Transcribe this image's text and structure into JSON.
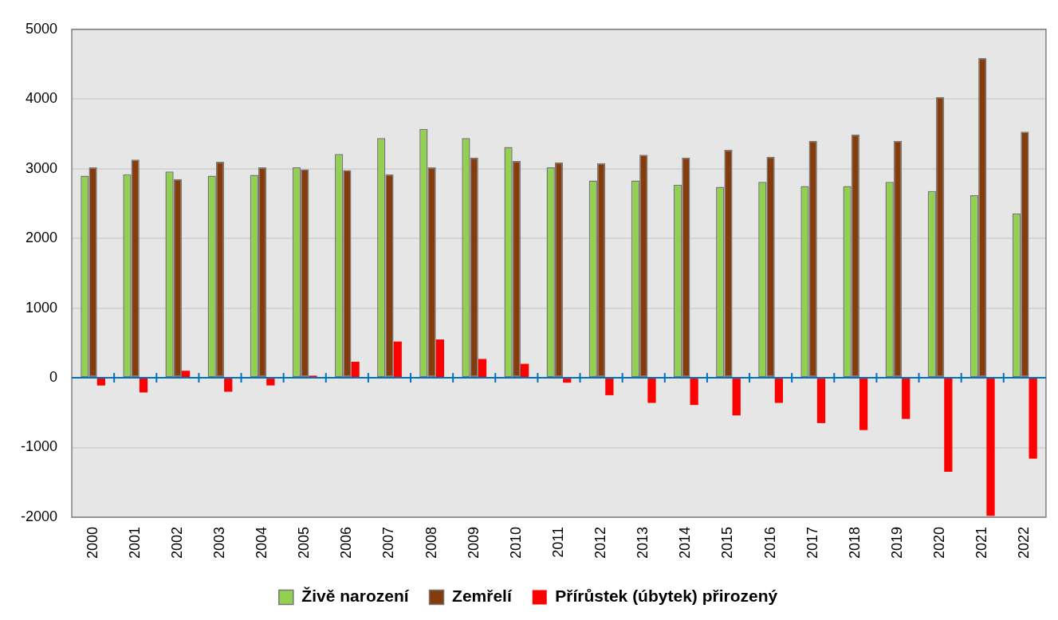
{
  "chart_data": {
    "type": "bar",
    "categories": [
      "2000",
      "2001",
      "2002",
      "2003",
      "2004",
      "2005",
      "2006",
      "2007",
      "2008",
      "2009",
      "2010",
      "2011",
      "2012",
      "2013",
      "2014",
      "2015",
      "2016",
      "2017",
      "2018",
      "2019",
      "2020",
      "2021",
      "2022"
    ],
    "series": [
      {
        "name": "Živě narození",
        "color": "#92d050",
        "values": [
          2900,
          2920,
          2960,
          2900,
          2910,
          3020,
          3210,
          3440,
          3570,
          3440,
          3310,
          3020,
          2830,
          2830,
          2770,
          2740,
          2810,
          2750,
          2750,
          2810,
          2680,
          2620,
          2360
        ]
      },
      {
        "name": "Zemřelí",
        "color": "#843c0c",
        "values": [
          3020,
          3130,
          2850,
          3100,
          3020,
          2990,
          2980,
          2920,
          3020,
          3160,
          3110,
          3090,
          3080,
          3200,
          3160,
          3270,
          3170,
          3400,
          3490,
          3400,
          4030,
          4590,
          3530
        ]
      },
      {
        "name": "Přírůstek (úbytek) přirozený",
        "color": "#ff0000",
        "values": [
          -110,
          -210,
          100,
          -200,
          -110,
          30,
          230,
          520,
          550,
          270,
          200,
          -70,
          -250,
          -360,
          -390,
          -540,
          -360,
          -650,
          -750,
          -590,
          -1350,
          -1980,
          -1160
        ]
      }
    ],
    "ylim": [
      -2000,
      5000
    ],
    "yticks": [
      -2000,
      -1000,
      0,
      1000,
      2000,
      3000,
      4000,
      5000
    ],
    "grid": "y",
    "legend": "bottom",
    "ref_lines": [
      {
        "axis": "y",
        "value": 0,
        "color": "#0070c0"
      }
    ]
  }
}
